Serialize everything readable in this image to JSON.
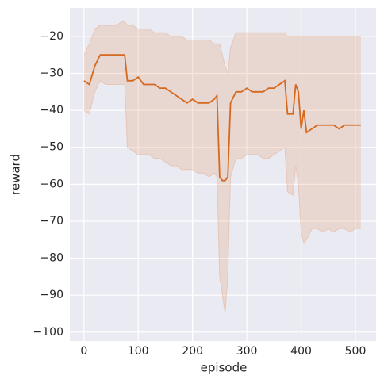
{
  "chart_data": {
    "type": "line",
    "xlabel": "episode",
    "ylabel": "reward",
    "x": [
      0,
      10,
      20,
      30,
      40,
      50,
      60,
      70,
      75,
      80,
      90,
      100,
      110,
      120,
      130,
      140,
      150,
      160,
      170,
      180,
      190,
      200,
      210,
      220,
      230,
      240,
      245,
      250,
      255,
      260,
      265,
      270,
      280,
      290,
      300,
      310,
      320,
      330,
      340,
      350,
      360,
      370,
      375,
      385,
      390,
      395,
      400,
      405,
      410,
      420,
      430,
      440,
      450,
      460,
      470,
      480,
      490,
      500,
      510
    ],
    "values": [
      -32,
      -33,
      -28,
      -25,
      -25,
      -25,
      -25,
      -25,
      -25,
      -32,
      -32,
      -31,
      -33,
      -33,
      -33,
      -34,
      -34,
      -35,
      -36,
      -37,
      -38,
      -37,
      -38,
      -38,
      -38,
      -37,
      -36,
      -58,
      -59,
      -59,
      -58,
      -38,
      -35,
      -35,
      -34,
      -35,
      -35,
      -35,
      -34,
      -34,
      -33,
      -32,
      -41,
      -41,
      -33,
      -35,
      -45,
      -40,
      -46,
      -45,
      -44,
      -44,
      -44,
      -44,
      -45,
      -44,
      -44,
      -44,
      -44
    ],
    "lower": [
      -40,
      -41,
      -35,
      -32,
      -33,
      -33,
      -33,
      -33,
      -33,
      -50,
      -51,
      -52,
      -52,
      -52,
      -53,
      -53,
      -54,
      -55,
      -55,
      -56,
      -56,
      -56,
      -57,
      -57,
      -58,
      -57,
      -58,
      -85,
      -90,
      -95,
      -85,
      -58,
      -53,
      -53,
      -52,
      -52,
      -52,
      -53,
      -53,
      -52,
      -51,
      -50,
      -62,
      -63,
      -55,
      -60,
      -73,
      -76,
      -75,
      -72,
      -72,
      -73,
      -72,
      -73,
      -72,
      -72,
      -73,
      -72,
      -72
    ],
    "upper": [
      -25,
      -22,
      -18,
      -17,
      -17,
      -17,
      -17,
      -16,
      -16,
      -17,
      -17,
      -18,
      -18,
      -18,
      -19,
      -19,
      -19,
      -20,
      -20,
      -20,
      -21,
      -21,
      -21,
      -21,
      -21,
      -22,
      -22,
      -22,
      -25,
      -28,
      -30,
      -23,
      -19,
      -19,
      -19,
      -19,
      -19,
      -19,
      -19,
      -19,
      -19,
      -19,
      -20,
      -20,
      -20,
      -20,
      -20,
      -20,
      -20,
      -20,
      -20,
      -20,
      -20,
      -20,
      -20,
      -20,
      -20,
      -20,
      -20
    ],
    "color": "#d5691f",
    "band_color": "#e39a6e",
    "xlim": [
      -26,
      538
    ],
    "xticks": [
      0,
      100,
      200,
      300,
      400,
      500
    ],
    "ylim": [
      -102.4,
      -12.3
    ],
    "yticks": [
      {
        "value": -100,
        "label": "−100"
      },
      {
        "value": -90,
        "label": "−90"
      },
      {
        "value": -80,
        "label": "−80"
      },
      {
        "value": -70,
        "label": "−70"
      },
      {
        "value": -60,
        "label": "−60"
      },
      {
        "value": -50,
        "label": "−50"
      },
      {
        "value": -40,
        "label": "−40"
      },
      {
        "value": -30,
        "label": "−30"
      },
      {
        "value": -20,
        "label": "−20"
      }
    ],
    "grid": true
  }
}
